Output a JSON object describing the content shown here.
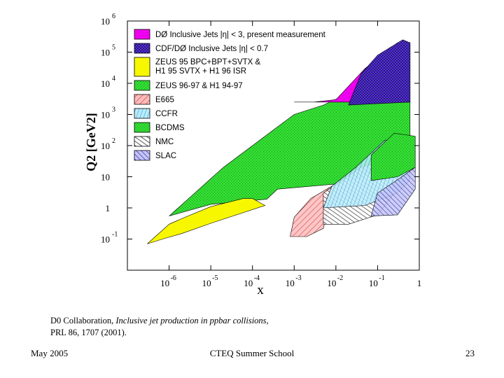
{
  "slide": {
    "citation_authors": "D0 Collaboration,",
    "citation_title": "Inclusive jet production in ppbar collisions",
    "citation_journal": "PRL  86, 1707 (2001).",
    "footer_left": "May 2005",
    "footer_center": "CTEQ Summer School",
    "footer_right": "23"
  },
  "chart_data": {
    "type": "area",
    "xlabel": "x",
    "ylabel": "Q2 [GeV2]",
    "x_scale": "log",
    "y_scale": "log",
    "xlim": [
      1e-07,
      1
    ],
    "ylim": [
      0.01,
      1000000
    ],
    "x_ticks": [
      {
        "base": "10",
        "exp": "-6",
        "value": 1e-06
      },
      {
        "base": "10",
        "exp": "-5",
        "value": 1e-05
      },
      {
        "base": "10",
        "exp": "-4",
        "value": 0.0001
      },
      {
        "base": "10",
        "exp": "-3",
        "value": 0.001
      },
      {
        "base": "10",
        "exp": "-2",
        "value": 0.01
      },
      {
        "base": "10",
        "exp": "-1",
        "value": 0.1
      },
      {
        "base": "1",
        "exp": "",
        "value": 1
      }
    ],
    "y_ticks": [
      {
        "base": "10",
        "exp": "-1",
        "value": 0.1
      },
      {
        "base": "1",
        "exp": "",
        "value": 1
      },
      {
        "base": "10",
        "exp": "",
        "value": 10
      },
      {
        "base": "10",
        "exp": "2",
        "value": 100
      },
      {
        "base": "10",
        "exp": "3",
        "value": 1000
      },
      {
        "base": "10",
        "exp": "4",
        "value": 10000
      },
      {
        "base": "10",
        "exp": "5",
        "value": 100000
      },
      {
        "base": "10",
        "exp": "6",
        "value": 1000000
      }
    ],
    "grid": false,
    "legend_position": "top-left",
    "series": [
      {
        "name": "ZEUS 96-97 & H1 94-97",
        "color": "#33dd33",
        "pattern": "stipple-green",
        "points": [
          [
            1e-06,
            0.55
          ],
          [
            1e-05,
            1.3
          ],
          [
            0.00022,
            1.9
          ],
          [
            0.0004,
            4
          ],
          [
            0.012,
            6
          ],
          [
            0.05,
            10
          ],
          [
            0.3,
            40
          ],
          [
            0.6,
            130
          ],
          [
            0.6,
            2500
          ],
          [
            0.5,
            20000
          ],
          [
            0.4,
            30000
          ],
          [
            0.005,
            2000
          ],
          [
            0.001,
            1000
          ],
          [
            0.0002,
            200
          ],
          [
            2e-05,
            20
          ],
          [
            1e-06,
            0.55
          ]
        ]
      },
      {
        "name": "ZEUS 95 BPC+BPT+SVTX & H1 95 SVTX + H1 96 ISR",
        "color": "#f7f700",
        "pattern": "solid",
        "points": [
          [
            3e-07,
            0.07
          ],
          [
            1e-06,
            0.3
          ],
          [
            2e-06,
            0.45
          ],
          [
            1e-05,
            1.1
          ],
          [
            6e-05,
            2
          ],
          [
            0.0001,
            2
          ],
          [
            0.0002,
            1.2
          ],
          [
            1e-05,
            0.32
          ],
          [
            2e-06,
            0.15
          ],
          [
            7e-07,
            0.1
          ],
          [
            3e-07,
            0.07
          ]
        ]
      },
      {
        "name": "E665",
        "color": "#ffaaaa",
        "pattern": "hatch-red",
        "points": [
          [
            0.0008,
            0.12
          ],
          [
            0.002,
            0.12
          ],
          [
            0.005,
            0.22
          ],
          [
            0.006,
            0.6
          ],
          [
            0.012,
            3
          ],
          [
            0.008,
            5
          ],
          [
            0.0025,
            2
          ],
          [
            0.001,
            0.5
          ],
          [
            0.0008,
            0.12
          ]
        ]
      },
      {
        "name": "NMC",
        "color": "#000000",
        "pattern": "hatch-black",
        "points": [
          [
            0.005,
            0.3
          ],
          [
            0.02,
            0.3
          ],
          [
            0.1,
            0.6
          ],
          [
            0.45,
            8
          ],
          [
            0.3,
            20
          ],
          [
            0.12,
            30
          ],
          [
            0.04,
            20
          ],
          [
            0.005,
            3
          ],
          [
            0.005,
            0.3
          ]
        ]
      },
      {
        "name": "CCFR",
        "color": "#a7e3ff",
        "pattern": "hatch-cyan",
        "points": [
          [
            0.005,
            1
          ],
          [
            0.05,
            1.2
          ],
          [
            0.3,
            3
          ],
          [
            0.6,
            8
          ],
          [
            0.5,
            150
          ],
          [
            0.15,
            150
          ],
          [
            0.03,
            20
          ],
          [
            0.008,
            5
          ],
          [
            0.005,
            1
          ]
        ]
      },
      {
        "name": "BCDMS",
        "color": "#ccff66",
        "pattern": "stipple-green",
        "points": [
          [
            0.07,
            7.5
          ],
          [
            0.3,
            10
          ],
          [
            0.8,
            20
          ],
          [
            0.8,
            200
          ],
          [
            0.25,
            250
          ],
          [
            0.07,
            50
          ],
          [
            0.07,
            7.5
          ]
        ]
      },
      {
        "name": "SLAC",
        "color": "#aaaaff",
        "pattern": "hatch-navy",
        "points": [
          [
            0.07,
            0.55
          ],
          [
            0.3,
            0.6
          ],
          [
            0.8,
            4
          ],
          [
            0.8,
            20
          ],
          [
            0.3,
            8
          ],
          [
            0.1,
            3
          ],
          [
            0.07,
            0.55
          ]
        ]
      },
      {
        "name": "DØ Inclusive Jets |η| < 3, present measurement",
        "color": "#ee00ee",
        "pattern": "solid",
        "points": [
          [
            0.001,
            2500
          ],
          [
            0.003,
            2500
          ],
          [
            0.01,
            3000
          ],
          [
            0.05,
            30000
          ],
          [
            0.3,
            200000
          ],
          [
            0.6,
            200000
          ],
          [
            0.6,
            2500
          ],
          [
            0.001,
            2500
          ]
        ]
      },
      {
        "name": "CDF/DØ Inclusive Jets |η| < 0.7",
        "color": "#5533dd",
        "pattern": "stipple-blue",
        "points": [
          [
            0.02,
            2000
          ],
          [
            0.6,
            2500
          ],
          [
            0.6,
            200000
          ],
          [
            0.4,
            250000
          ],
          [
            0.1,
            80000
          ],
          [
            0.04,
            20000
          ],
          [
            0.02,
            2000
          ]
        ]
      }
    ]
  }
}
